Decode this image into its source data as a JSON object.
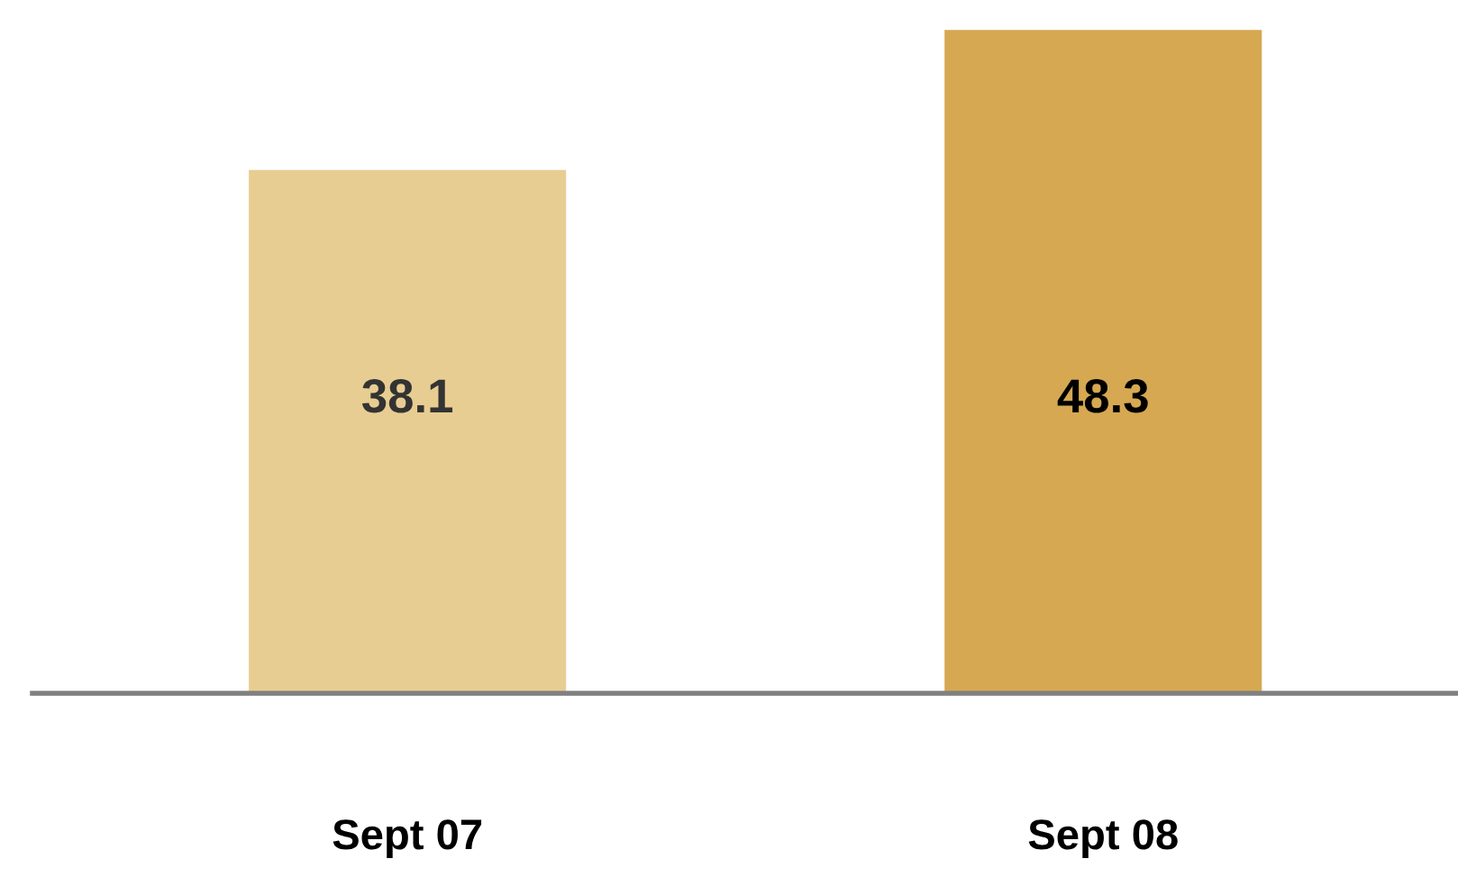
{
  "chart_data": {
    "type": "bar",
    "categories": [
      "Sept 07",
      "Sept 08"
    ],
    "values": [
      38.1,
      48.3
    ],
    "colors": [
      "#e8cd92",
      "#d6a852"
    ],
    "data_labels": true,
    "tick_labels": "x",
    "grid": false,
    "legend": false
  }
}
